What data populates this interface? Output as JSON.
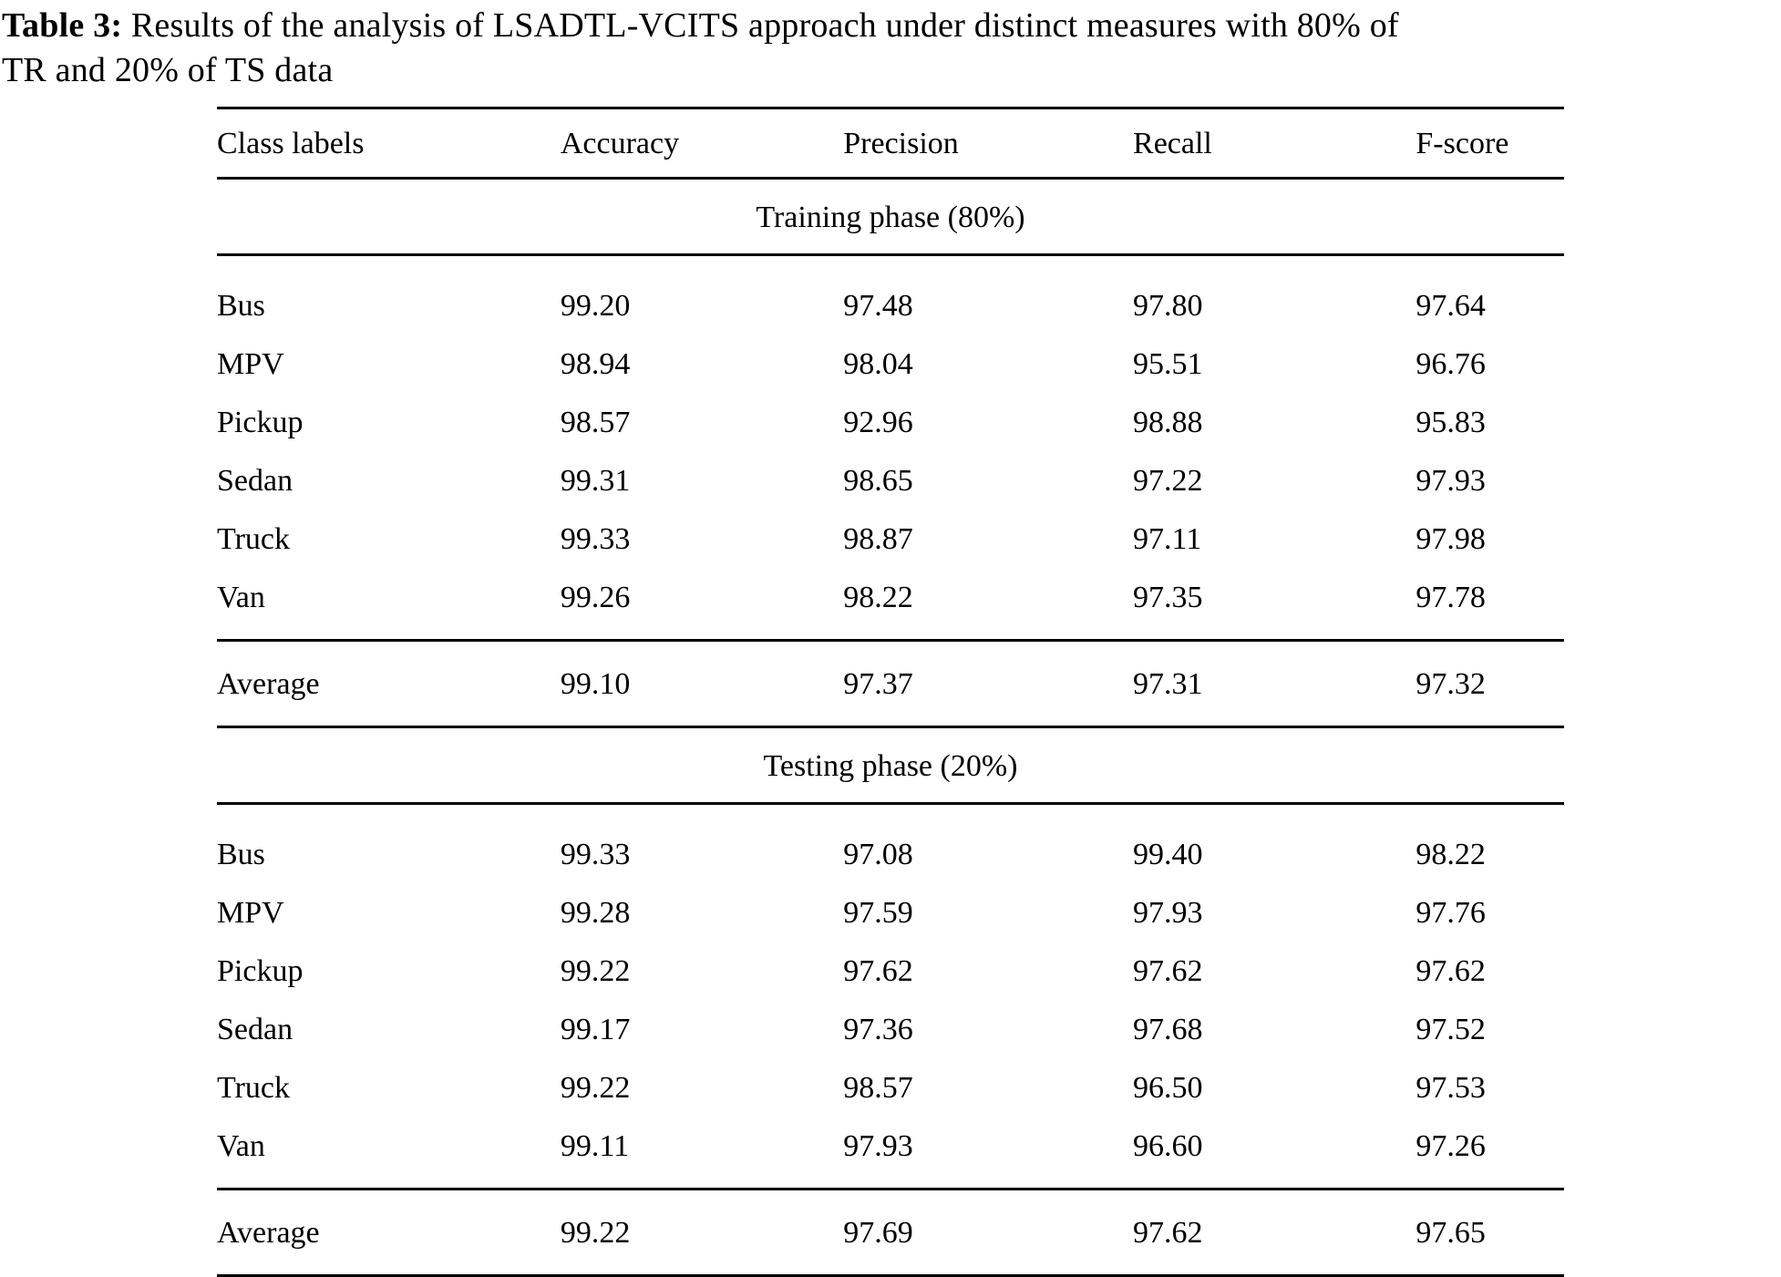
{
  "caption": {
    "label": "Table 3:",
    "line1": "Results of the analysis of LSADTL-VCITS approach under distinct measures with 80% of",
    "line2": "TR and 20% of TS data"
  },
  "table": {
    "columns": [
      "Class labels",
      "Accuracy",
      "Precision",
      "Recall",
      "F-score"
    ],
    "sections": [
      {
        "heading": "Training phase (80%)",
        "rows": [
          {
            "label": "Bus",
            "values": [
              "99.20",
              "97.48",
              "97.80",
              "97.64"
            ]
          },
          {
            "label": "MPV",
            "values": [
              "98.94",
              "98.04",
              "95.51",
              "96.76"
            ]
          },
          {
            "label": "Pickup",
            "values": [
              "98.57",
              "92.96",
              "98.88",
              "95.83"
            ]
          },
          {
            "label": "Sedan",
            "values": [
              "99.31",
              "98.65",
              "97.22",
              "97.93"
            ]
          },
          {
            "label": "Truck",
            "values": [
              "99.33",
              "98.87",
              "97.11",
              "97.98"
            ]
          },
          {
            "label": "Van",
            "values": [
              "99.26",
              "98.22",
              "97.35",
              "97.78"
            ]
          }
        ],
        "average": {
          "label": "Average",
          "values": [
            "99.10",
            "97.37",
            "97.31",
            "97.32"
          ]
        }
      },
      {
        "heading": "Testing phase (20%)",
        "rows": [
          {
            "label": "Bus",
            "values": [
              "99.33",
              "97.08",
              "99.40",
              "98.22"
            ]
          },
          {
            "label": "MPV",
            "values": [
              "99.28",
              "97.59",
              "97.93",
              "97.76"
            ]
          },
          {
            "label": "Pickup",
            "values": [
              "99.22",
              "97.62",
              "97.62",
              "97.62"
            ]
          },
          {
            "label": "Sedan",
            "values": [
              "99.17",
              "97.36",
              "97.68",
              "97.52"
            ]
          },
          {
            "label": "Truck",
            "values": [
              "99.22",
              "98.57",
              "96.50",
              "97.53"
            ]
          },
          {
            "label": "Van",
            "values": [
              "99.11",
              "97.93",
              "96.60",
              "97.26"
            ]
          }
        ],
        "average": {
          "label": "Average",
          "values": [
            "99.22",
            "97.69",
            "97.62",
            "97.65"
          ]
        }
      }
    ]
  }
}
